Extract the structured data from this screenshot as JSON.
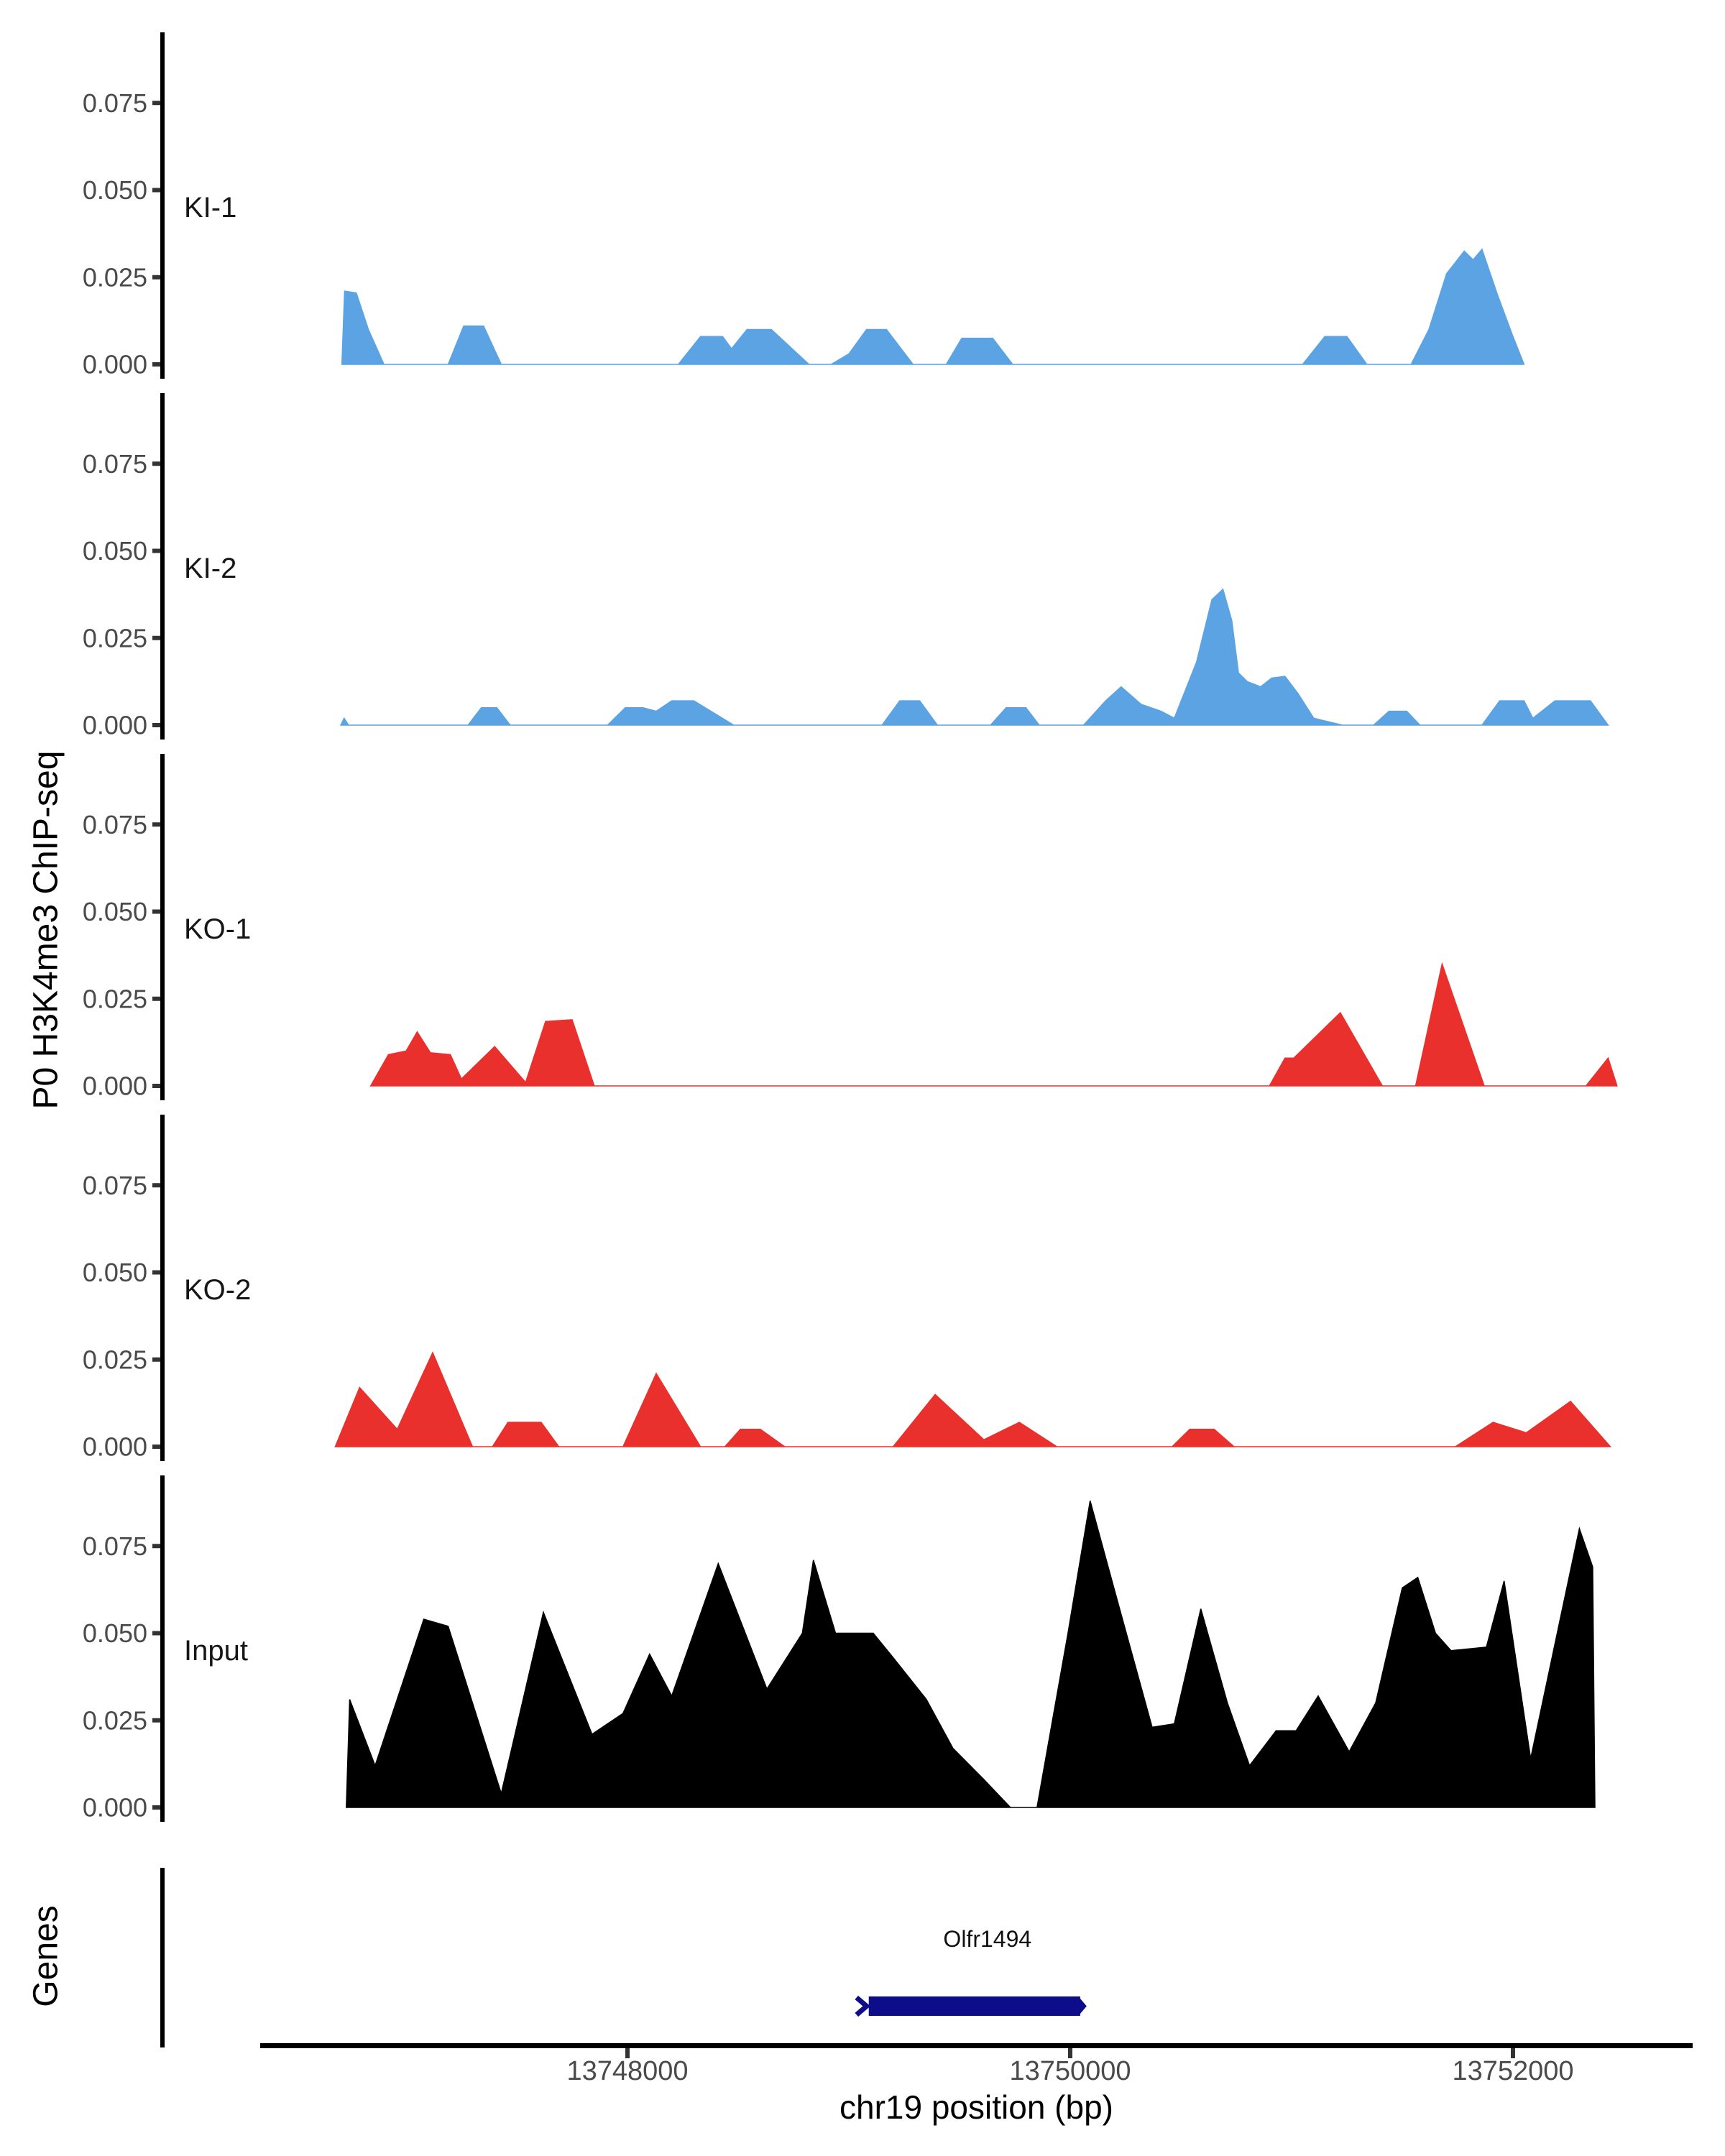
{
  "figure": {
    "y_axis_title": "P0 H3K4me3 ChIP-seq",
    "genes_title": "Genes",
    "x_axis_title": "chr19 position (bp)",
    "y_tick_labels": [
      "0.075",
      "0.050",
      "0.025",
      "0.000"
    ],
    "y_ticks": [
      {
        "label": "0.075",
        "value": 0.075
      },
      {
        "label": "0.050",
        "value": 0.05
      },
      {
        "label": "0.025",
        "value": 0.025
      },
      {
        "label": "0.000",
        "value": 0.0
      }
    ],
    "x_ticks": [
      {
        "label": "13748000",
        "bp": 13748000
      },
      {
        "label": "13750000",
        "bp": 13750000
      },
      {
        "label": "13752000",
        "bp": 13752000
      }
    ],
    "colors": {
      "ki_blue": "#5BA3E2",
      "ko_red": "#E9302C",
      "input_black": "#000000",
      "gene_navy": "#0D0D8C",
      "axis_line": "#000000",
      "tick_mark": "#333333",
      "tick_label": "#4a4a4a"
    },
    "gene": {
      "name": "Olfr1494",
      "start_bp": 13749090,
      "end_bp": 13750045,
      "strand": "+"
    }
  },
  "chart_data": {
    "type": "area",
    "title": "",
    "xlabel": "chr19 position (bp)",
    "ylabel": "P0 H3K4me3 ChIP-seq",
    "xlim": [
      13746340,
      13752810
    ],
    "ylim": [
      0,
      0.095
    ],
    "grid": false,
    "legend_position": "none",
    "facets_top_to_bottom": [
      "KI-1",
      "KI-2",
      "KO-1",
      "KO-2",
      "Input"
    ],
    "tracks": [
      {
        "name": "KI-1",
        "color": "#5BA3E2",
        "points": [
          [
            13746710,
            0
          ],
          [
            13746722,
            0.021
          ],
          [
            13746775,
            0.0205
          ],
          [
            13746830,
            0.01
          ],
          [
            13746900,
            0
          ],
          [
            13747190,
            0
          ],
          [
            13747260,
            0.011
          ],
          [
            13747350,
            0.011
          ],
          [
            13747430,
            0
          ],
          [
            13748230,
            0
          ],
          [
            13748330,
            0.008
          ],
          [
            13748430,
            0.008
          ],
          [
            13748470,
            0.0045
          ],
          [
            13748540,
            0.01
          ],
          [
            13748650,
            0.01
          ],
          [
            13748820,
            0
          ],
          [
            13748920,
            0
          ],
          [
            13749000,
            0.003
          ],
          [
            13749080,
            0.01
          ],
          [
            13749170,
            0.01
          ],
          [
            13749290,
            0
          ],
          [
            13749440,
            0
          ],
          [
            13749510,
            0.0075
          ],
          [
            13749650,
            0.0075
          ],
          [
            13749740,
            0
          ],
          [
            13751050,
            0
          ],
          [
            13751150,
            0.008
          ],
          [
            13751250,
            0.008
          ],
          [
            13751340,
            0
          ],
          [
            13751540,
            0
          ],
          [
            13751620,
            0.01
          ],
          [
            13751700,
            0.026
          ],
          [
            13751780,
            0.0325
          ],
          [
            13751820,
            0.03
          ],
          [
            13751860,
            0.033
          ],
          [
            13751930,
            0.02
          ],
          [
            13752000,
            0.008
          ],
          [
            13752050,
            0
          ]
        ]
      },
      {
        "name": "KI-2",
        "color": "#5BA3E2",
        "points": [
          [
            13746705,
            0
          ],
          [
            13746720,
            0.002
          ],
          [
            13746740,
            0
          ],
          [
            13747280,
            0
          ],
          [
            13747340,
            0.005
          ],
          [
            13747410,
            0.005
          ],
          [
            13747470,
            0
          ],
          [
            13747910,
            0
          ],
          [
            13747990,
            0.005
          ],
          [
            13748070,
            0.005
          ],
          [
            13748130,
            0.004
          ],
          [
            13748200,
            0.007
          ],
          [
            13748300,
            0.007
          ],
          [
            13748480,
            0
          ],
          [
            13749150,
            0
          ],
          [
            13749230,
            0.007
          ],
          [
            13749320,
            0.007
          ],
          [
            13749400,
            0
          ],
          [
            13749640,
            0
          ],
          [
            13749710,
            0.005
          ],
          [
            13749800,
            0.005
          ],
          [
            13749860,
            0
          ],
          [
            13750060,
            0
          ],
          [
            13750160,
            0.007
          ],
          [
            13750230,
            0.011
          ],
          [
            13750320,
            0.006
          ],
          [
            13750410,
            0.004
          ],
          [
            13750470,
            0.002
          ],
          [
            13750570,
            0.018
          ],
          [
            13750640,
            0.036
          ],
          [
            13750690,
            0.039
          ],
          [
            13750730,
            0.03
          ],
          [
            13750760,
            0.015
          ],
          [
            13750800,
            0.0125
          ],
          [
            13750860,
            0.011
          ],
          [
            13750910,
            0.0135
          ],
          [
            13750970,
            0.014
          ],
          [
            13751030,
            0.009
          ],
          [
            13751100,
            0.002
          ],
          [
            13751230,
            0
          ],
          [
            13751370,
            0
          ],
          [
            13751440,
            0.004
          ],
          [
            13751520,
            0.004
          ],
          [
            13751580,
            0
          ],
          [
            13751860,
            0
          ],
          [
            13751940,
            0.007
          ],
          [
            13752050,
            0.007
          ],
          [
            13752090,
            0.002
          ],
          [
            13752190,
            0.007
          ],
          [
            13752350,
            0.007
          ],
          [
            13752430,
            0
          ]
        ]
      },
      {
        "name": "KO-1",
        "color": "#E9302C",
        "points": [
          [
            13746840,
            0
          ],
          [
            13746920,
            0.009
          ],
          [
            13747000,
            0.01
          ],
          [
            13747050,
            0.0155
          ],
          [
            13747110,
            0.0095
          ],
          [
            13747200,
            0.009
          ],
          [
            13747250,
            0.002
          ],
          [
            13747400,
            0.0113
          ],
          [
            13747540,
            0.001
          ],
          [
            13747630,
            0.0185
          ],
          [
            13747750,
            0.019
          ],
          [
            13747850,
            0
          ],
          [
            13750900,
            0
          ],
          [
            13750970,
            0.008
          ],
          [
            13751010,
            0.008
          ],
          [
            13751220,
            0.021
          ],
          [
            13751410,
            0
          ],
          [
            13751560,
            0
          ],
          [
            13751680,
            0.035
          ],
          [
            13751870,
            0
          ],
          [
            13752330,
            0
          ],
          [
            13752430,
            0.008
          ],
          [
            13752470,
            0
          ]
        ]
      },
      {
        "name": "KO-2",
        "color": "#E9302C",
        "points": [
          [
            13746680,
            0
          ],
          [
            13746790,
            0.017
          ],
          [
            13746960,
            0.005
          ],
          [
            13747120,
            0.027
          ],
          [
            13747300,
            0
          ],
          [
            13747390,
            0
          ],
          [
            13747460,
            0.007
          ],
          [
            13747610,
            0.007
          ],
          [
            13747690,
            0
          ],
          [
            13747980,
            0
          ],
          [
            13748130,
            0.021
          ],
          [
            13748330,
            0
          ],
          [
            13748440,
            0
          ],
          [
            13748510,
            0.005
          ],
          [
            13748600,
            0.005
          ],
          [
            13748710,
            0
          ],
          [
            13749200,
            0
          ],
          [
            13749390,
            0.015
          ],
          [
            13749610,
            0.002
          ],
          [
            13749770,
            0.007
          ],
          [
            13749940,
            0
          ],
          [
            13750460,
            0
          ],
          [
            13750540,
            0.005
          ],
          [
            13750650,
            0.005
          ],
          [
            13750740,
            0
          ],
          [
            13751740,
            0
          ],
          [
            13751910,
            0.007
          ],
          [
            13752060,
            0.004
          ],
          [
            13752260,
            0.013
          ],
          [
            13752440,
            0
          ]
        ]
      },
      {
        "name": "Input",
        "color": "#000000",
        "points": [
          [
            13746730,
            0
          ],
          [
            13746745,
            0.031
          ],
          [
            13746860,
            0.012
          ],
          [
            13747080,
            0.054
          ],
          [
            13747190,
            0.052
          ],
          [
            13747430,
            0.004
          ],
          [
            13747620,
            0.056
          ],
          [
            13747840,
            0.021
          ],
          [
            13747980,
            0.027
          ],
          [
            13748100,
            0.044
          ],
          [
            13748200,
            0.032
          ],
          [
            13748410,
            0.07
          ],
          [
            13748630,
            0.034
          ],
          [
            13748790,
            0.05
          ],
          [
            13748840,
            0.071
          ],
          [
            13748940,
            0.05
          ],
          [
            13749110,
            0.05
          ],
          [
            13749200,
            0.043
          ],
          [
            13749350,
            0.031
          ],
          [
            13749470,
            0.017
          ],
          [
            13749610,
            0.008
          ],
          [
            13749730,
            0
          ],
          [
            13749850,
            0
          ],
          [
            13749990,
            0.05
          ],
          [
            13750090,
            0.088
          ],
          [
            13750210,
            0.06
          ],
          [
            13750370,
            0.023
          ],
          [
            13750470,
            0.024
          ],
          [
            13750590,
            0.057
          ],
          [
            13750710,
            0.03
          ],
          [
            13750810,
            0.012
          ],
          [
            13750930,
            0.022
          ],
          [
            13751020,
            0.022
          ],
          [
            13751120,
            0.032
          ],
          [
            13751260,
            0.016
          ],
          [
            13751380,
            0.03
          ],
          [
            13751500,
            0.063
          ],
          [
            13751570,
            0.066
          ],
          [
            13751650,
            0.05
          ],
          [
            13751720,
            0.045
          ],
          [
            13751880,
            0.046
          ],
          [
            13751960,
            0.065
          ],
          [
            13752080,
            0.014
          ],
          [
            13752300,
            0.08
          ],
          [
            13752360,
            0.069
          ],
          [
            13752370,
            0
          ]
        ]
      }
    ]
  }
}
